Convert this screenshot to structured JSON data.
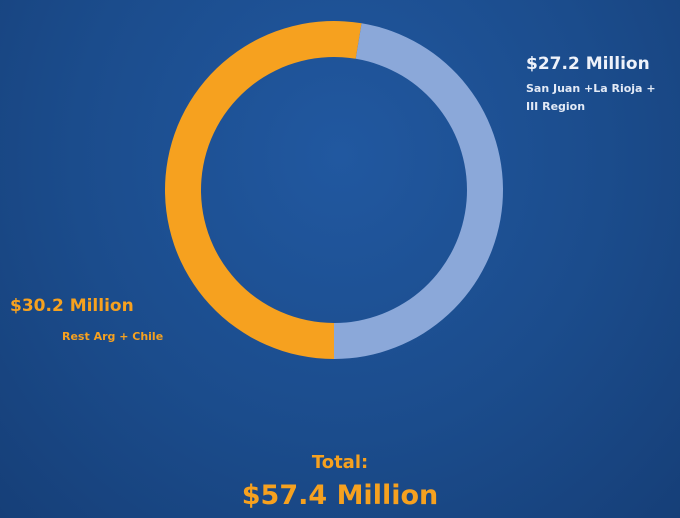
{
  "chart_data": {
    "type": "donut",
    "categories": [
      "Rest Arg + Chile",
      "San Juan +La Rioja + III Region"
    ],
    "values": [
      30.2,
      27.2
    ],
    "value_labels": [
      "$30.2 Million",
      "$27.2 Million"
    ],
    "colors": [
      "#f6a11f",
      "#8ba8d9"
    ],
    "annotations": [
      "Total:",
      "$57.4 Million"
    ]
  }
}
